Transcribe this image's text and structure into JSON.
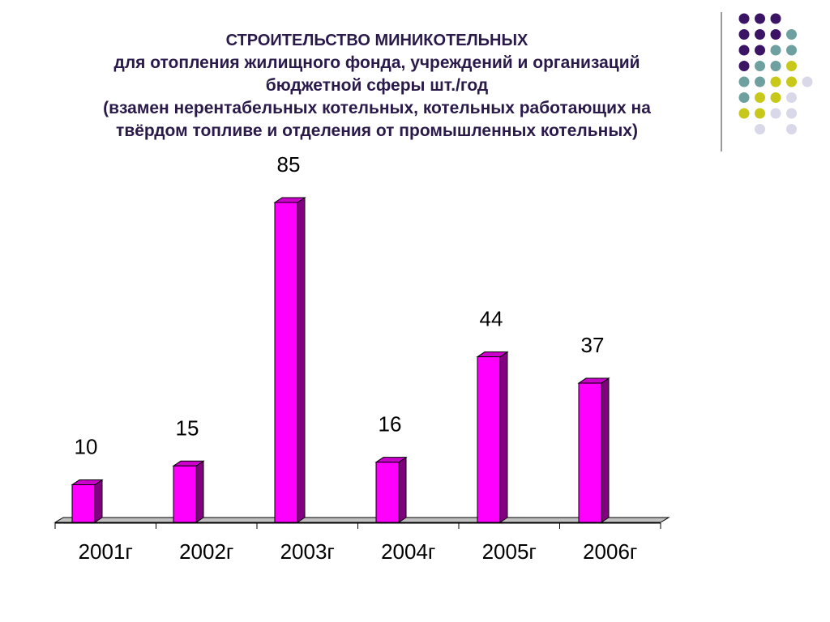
{
  "title": {
    "line1": "СТРОИТЕЛЬСТВО МИНИКОТЕЛЬНЫХ",
    "line2": "для отопления жилищного фонда, учреждений и организаций",
    "line3": "бюджетной сферы шт./год",
    "line4": "(взамен нерентабельных котельных, котельных работающих на",
    "line5": "твёрдом топливе и отделения от промышленных котельных)"
  },
  "colors": {
    "bar_front": "#ff00ff",
    "bar_side": "#800080",
    "bar_top": "#cc00cc",
    "floor": "#c0c0c0",
    "dot_purple": "#3b1466",
    "dot_teal": "#6fa0a0",
    "dot_olive": "#c8c81a",
    "dot_lavender": "#d8d8e8"
  },
  "decoration": {
    "dot_grid": [
      [
        "dot_purple",
        "dot_purple",
        "dot_purple",
        "",
        ""
      ],
      [
        "dot_purple",
        "dot_purple",
        "dot_purple",
        "dot_teal",
        ""
      ],
      [
        "dot_purple",
        "dot_purple",
        "dot_teal",
        "dot_teal",
        ""
      ],
      [
        "dot_purple",
        "dot_teal",
        "dot_teal",
        "dot_olive",
        ""
      ],
      [
        "dot_teal",
        "dot_teal",
        "dot_olive",
        "dot_olive",
        "dot_lavender"
      ],
      [
        "dot_teal",
        "dot_olive",
        "dot_olive",
        "dot_lavender",
        ""
      ],
      [
        "dot_olive",
        "dot_olive",
        "dot_lavender",
        "dot_lavender",
        ""
      ],
      [
        "",
        "dot_lavender",
        "",
        "dot_lavender",
        ""
      ]
    ]
  },
  "chart_data": {
    "type": "bar",
    "categories": [
      "2001г",
      "2002г",
      "2003г",
      "2004г",
      "2005г",
      "2006г"
    ],
    "values": [
      10,
      15,
      85,
      16,
      44,
      37
    ],
    "data_labels": [
      "10",
      "15",
      "85",
      "16",
      "44",
      "37"
    ],
    "title": "СТРОИТЕЛЬСТВО МИНИКОТЕЛЬНЫХ",
    "xlabel": "",
    "ylabel": "",
    "ylim": [
      0,
      85
    ],
    "style": "3d-column",
    "grid": false,
    "legend": "none"
  }
}
